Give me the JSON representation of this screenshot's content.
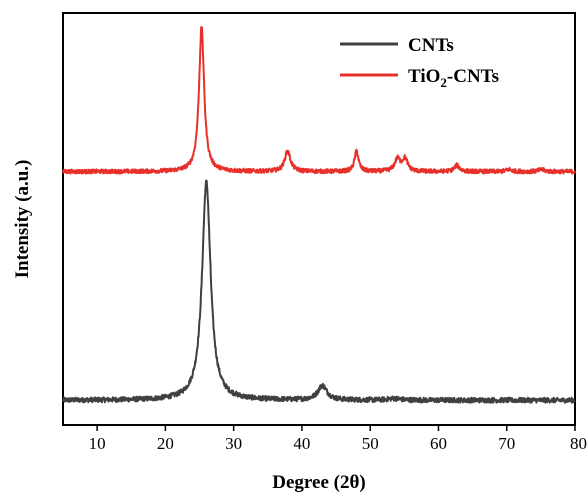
{
  "chart_data": {
    "type": "line",
    "xlabel": "Degree (2θ)",
    "ylabel": "Intensity (a.u.)",
    "xlim": [
      5,
      80
    ],
    "ylim": [
      0,
      1
    ],
    "x_ticks": [
      10,
      20,
      30,
      40,
      50,
      60,
      70,
      80
    ],
    "y_ticks_labeled": false,
    "grid": false,
    "legend_position": "top-right",
    "series": [
      {
        "name": "CNTs",
        "legend_main": "CNTs",
        "legend_sub": "",
        "legend_suffix": "",
        "color": "#404040",
        "baseline": 0.06,
        "noise": 0.006,
        "peaks": [
          {
            "center": 26.0,
            "width": 0.75,
            "height": 0.53
          },
          {
            "center": 43.0,
            "width": 0.8,
            "height": 0.035
          },
          {
            "center": 53.5,
            "width": 1.0,
            "height": 0.004
          }
        ]
      },
      {
        "name": "TiO2-CNTs",
        "legend_main": "TiO",
        "legend_sub": "2",
        "legend_suffix": "-CNTs",
        "color": "#e8302a",
        "baseline": 0.615,
        "noise": 0.005,
        "peaks": [
          {
            "center": 25.3,
            "width": 0.45,
            "height": 0.35
          },
          {
            "center": 37.9,
            "width": 0.5,
            "height": 0.05
          },
          {
            "center": 48.0,
            "width": 0.35,
            "height": 0.05
          },
          {
            "center": 54.0,
            "width": 0.5,
            "height": 0.03
          },
          {
            "center": 55.1,
            "width": 0.45,
            "height": 0.03
          },
          {
            "center": 62.7,
            "width": 0.45,
            "height": 0.015
          },
          {
            "center": 70.3,
            "width": 0.5,
            "height": 0.005
          },
          {
            "center": 75.1,
            "width": 0.5,
            "height": 0.005
          }
        ]
      }
    ]
  }
}
